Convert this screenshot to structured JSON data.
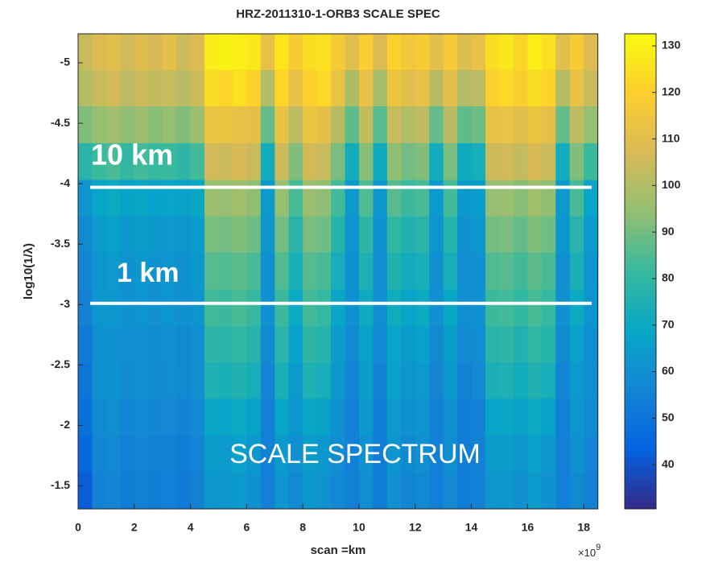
{
  "chart_data": {
    "type": "heatmap",
    "title": "HRZ-2011310-1-ORB3 SCALE SPEC",
    "x_label": "scan =km",
    "y_label": "log10(1/λ)",
    "x_multiplier": {
      "base": "×10",
      "exponent": "9"
    },
    "xlim": [
      0,
      18.5
    ],
    "ylim": [
      -5.24,
      -1.31
    ],
    "y_direction": "reverse",
    "xticks": [
      0,
      2,
      4,
      6,
      8,
      10,
      12,
      14,
      16,
      18
    ],
    "yticks": [
      -5,
      -4.5,
      -4,
      -3.5,
      -3,
      -2.5,
      -2,
      -1.5
    ],
    "x": [
      0.25,
      0.75,
      1.25,
      1.75,
      2.25,
      2.75,
      3.25,
      3.75,
      4.25,
      4.75,
      5.25,
      5.75,
      6.25,
      6.75,
      7.25,
      7.75,
      8.25,
      8.75,
      9.25,
      9.75,
      10.25,
      10.75,
      11.25,
      11.75,
      12.25,
      12.75,
      13.25,
      13.75,
      14.25,
      14.75,
      15.25,
      15.75,
      16.25,
      16.75,
      17.25,
      17.75,
      18.25
    ],
    "y": [
      -5.09,
      -4.79,
      -4.49,
      -4.18,
      -3.88,
      -3.58,
      -3.28,
      -2.97,
      -2.67,
      -2.37,
      -2.07,
      -1.76,
      -1.46
    ],
    "z": [
      [
        104,
        108,
        110,
        106,
        109,
        107,
        111,
        105,
        108,
        128,
        130,
        129,
        127,
        112,
        126,
        118,
        124,
        125,
        117,
        110,
        119,
        108,
        120,
        116,
        118,
        111,
        117,
        109,
        112,
        124,
        127,
        122,
        129,
        125,
        110,
        118,
        108
      ],
      [
        100,
        104,
        106,
        102,
        105,
        103,
        104,
        101,
        105,
        124,
        122,
        125,
        121,
        100,
        122,
        112,
        120,
        123,
        113,
        99,
        112,
        98,
        114,
        110,
        112,
        101,
        111,
        100,
        102,
        120,
        123,
        119,
        124,
        121,
        100,
        112,
        104
      ],
      [
        92,
        95,
        97,
        94,
        96,
        93,
        95,
        92,
        96,
        113,
        114,
        112,
        111,
        88,
        112,
        102,
        114,
        111,
        101,
        87,
        103,
        86,
        104,
        100,
        102,
        88,
        101,
        87,
        89,
        112,
        113,
        110,
        114,
        111,
        88,
        102,
        95
      ],
      [
        78,
        82,
        84,
        80,
        83,
        81,
        82,
        79,
        83,
        106,
        105,
        107,
        104,
        72,
        105,
        92,
        106,
        104,
        91,
        72,
        93,
        71,
        94,
        90,
        92,
        72,
        91,
        71,
        73,
        105,
        106,
        103,
        107,
        104,
        72,
        92,
        82
      ],
      [
        62,
        68,
        70,
        67,
        69,
        66,
        68,
        66,
        69,
        96,
        95,
        97,
        94,
        64,
        95,
        84,
        96,
        94,
        83,
        64,
        85,
        63,
        86,
        82,
        84,
        64,
        83,
        63,
        65,
        95,
        96,
        93,
        97,
        94,
        64,
        84,
        68
      ],
      [
        58,
        64,
        66,
        63,
        65,
        63,
        64,
        62,
        65,
        91,
        90,
        92,
        89,
        62,
        90,
        78,
        91,
        89,
        77,
        62,
        79,
        61,
        80,
        76,
        78,
        62,
        77,
        61,
        63,
        90,
        91,
        88,
        92,
        89,
        62,
        78,
        64
      ],
      [
        56,
        62,
        64,
        61,
        63,
        61,
        62,
        60,
        63,
        86,
        85,
        87,
        84,
        60,
        85,
        74,
        86,
        84,
        73,
        60,
        75,
        59,
        76,
        72,
        74,
        60,
        73,
        59,
        61,
        85,
        86,
        83,
        87,
        84,
        60,
        74,
        62
      ],
      [
        55,
        62,
        63,
        61,
        62,
        60,
        62,
        60,
        62,
        83,
        82,
        84,
        81,
        60,
        82,
        70,
        83,
        81,
        69,
        60,
        71,
        59,
        72,
        68,
        70,
        60,
        69,
        59,
        61,
        82,
        83,
        80,
        84,
        81,
        60,
        70,
        62
      ],
      [
        52,
        60,
        61,
        59,
        60,
        58,
        60,
        58,
        60,
        79,
        78,
        80,
        77,
        58,
        78,
        66,
        79,
        77,
        65,
        58,
        67,
        57,
        68,
        64,
        66,
        58,
        65,
        57,
        59,
        78,
        79,
        76,
        80,
        77,
        58,
        66,
        60
      ],
      [
        50,
        60,
        61,
        58,
        60,
        58,
        59,
        57,
        60,
        75,
        74,
        76,
        73,
        56,
        74,
        64,
        75,
        73,
        63,
        56,
        65,
        55,
        66,
        62,
        64,
        56,
        63,
        55,
        57,
        74,
        75,
        72,
        76,
        73,
        56,
        64,
        60
      ],
      [
        48,
        58,
        59,
        56,
        58,
        56,
        57,
        55,
        58,
        69,
        68,
        70,
        67,
        54,
        68,
        62,
        69,
        67,
        61,
        54,
        63,
        53,
        64,
        60,
        62,
        54,
        61,
        53,
        55,
        68,
        69,
        66,
        70,
        67,
        54,
        62,
        58
      ],
      [
        45,
        56,
        57,
        54,
        56,
        54,
        55,
        53,
        56,
        65,
        64,
        66,
        63,
        54,
        64,
        60,
        65,
        63,
        59,
        54,
        61,
        53,
        62,
        58,
        60,
        54,
        59,
        53,
        55,
        64,
        65,
        62,
        66,
        63,
        54,
        60,
        56
      ],
      [
        42,
        55,
        56,
        53,
        55,
        53,
        54,
        52,
        55,
        63,
        62,
        64,
        61,
        54,
        62,
        58,
        63,
        61,
        57,
        54,
        59,
        53,
        60,
        56,
        58,
        54,
        57,
        53,
        55,
        62,
        63,
        60,
        64,
        61,
        54,
        58,
        55
      ]
    ],
    "clim": [
      30.5,
      132.6
    ],
    "cticks": [
      40,
      50,
      60,
      70,
      80,
      90,
      100,
      110,
      120,
      130
    ],
    "colormap": [
      "#352a87",
      "#0363e1",
      "#1485d4",
      "#06a7c6",
      "#38b99e",
      "#92bf73",
      "#d9ba56",
      "#fcce2e",
      "#f9fb0e"
    ],
    "hlines": [
      {
        "y": -3.97,
        "x": [
          0.43,
          18.28
        ],
        "color": "#ffffff"
      },
      {
        "y": -3.01,
        "x": [
          0.43,
          18.28
        ],
        "color": "#ffffff"
      }
    ],
    "annotations": [
      "10 km",
      "1 km",
      "SCALE SPECTRUM"
    ]
  }
}
